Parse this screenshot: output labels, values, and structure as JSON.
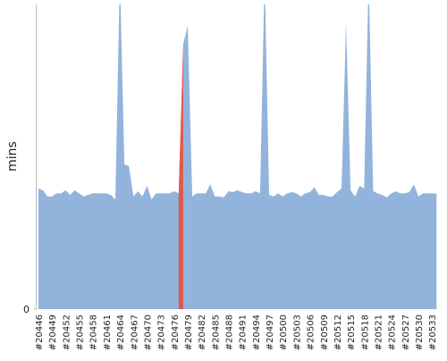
{
  "chart_data": {
    "type": "area",
    "y_label": "mins",
    "categories": [
      "#20446",
      null,
      null,
      "#20449",
      null,
      null,
      "#20452",
      null,
      null,
      "#20455",
      null,
      null,
      "#20458",
      null,
      null,
      "#20461",
      null,
      null,
      "#20464",
      null,
      null,
      "#20467",
      null,
      null,
      "#20470",
      null,
      null,
      "#20473",
      null,
      null,
      "#20476",
      null,
      null,
      "#20479",
      null,
      null,
      "#20482",
      null,
      null,
      "#20485",
      null,
      null,
      "#20488",
      null,
      null,
      "#20491",
      null,
      null,
      "#20494",
      null,
      null,
      "#20497",
      null,
      null,
      "#20500",
      null,
      null,
      "#20503",
      null,
      null,
      "#20506",
      null,
      null,
      "#20509",
      null,
      null,
      "#20512",
      null,
      null,
      "#20515",
      null,
      null,
      "#20518",
      null,
      null,
      "#20521",
      null,
      null,
      "#20524",
      null,
      null,
      "#20527",
      null,
      null,
      "#20530",
      null,
      null,
      "#20533",
      null
    ],
    "values": [
      39.6,
      39,
      37,
      37,
      38,
      38,
      39,
      37.5,
      39,
      38,
      37,
      37.5,
      38,
      38,
      38,
      38,
      37.5,
      36,
      110,
      47.5,
      47,
      37,
      38.7,
      37,
      40.5,
      36,
      38,
      38,
      38,
      38,
      38.7,
      38,
      87,
      93,
      37,
      38,
      38,
      38,
      41,
      37,
      37,
      36.7,
      38.7,
      38.4,
      39,
      38.4,
      38,
      38,
      38.7,
      38,
      110,
      37.5,
      37,
      38,
      37,
      38,
      38.4,
      38,
      37,
      38,
      38.4,
      40,
      37.5,
      37.5,
      37,
      37,
      38.4,
      39.6,
      94,
      39,
      37,
      40.5,
      39.6,
      110,
      38.7,
      38,
      37.5,
      36.7,
      38,
      38.7,
      38,
      38,
      38.4,
      41,
      37,
      38,
      38,
      38,
      38
    ],
    "color": "#92b4dc",
    "highlight_index": 31,
    "highlight_color": "#e5574c",
    "ylim": [
      0,
      100
    ],
    "yticks": [
      0
    ]
  }
}
